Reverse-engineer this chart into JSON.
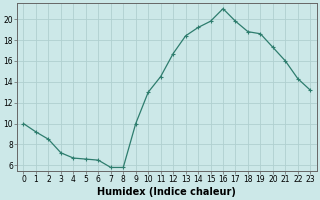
{
  "xlabel": "Humidex (Indice chaleur)",
  "x": [
    0,
    1,
    2,
    3,
    4,
    5,
    6,
    7,
    8,
    9,
    10,
    11,
    12,
    13,
    14,
    15,
    16,
    17,
    18,
    19,
    20,
    21,
    22,
    23
  ],
  "y": [
    10.0,
    9.2,
    8.5,
    7.2,
    6.7,
    6.6,
    6.5,
    5.8,
    5.8,
    10.0,
    13.0,
    14.5,
    16.7,
    18.4,
    19.2,
    19.8,
    21.0,
    19.8,
    18.8,
    18.6,
    17.3,
    16.0,
    14.3,
    13.2
  ],
  "line_color": "#2e7d6e",
  "marker": "+",
  "marker_size": 3,
  "bg_color": "#cce8e8",
  "grid_color": "#b0d0d0",
  "axes_color": "#666666",
  "ylim": [
    5.5,
    21.5
  ],
  "yticks": [
    6,
    8,
    10,
    12,
    14,
    16,
    18,
    20
  ],
  "xticks": [
    0,
    1,
    2,
    3,
    4,
    5,
    6,
    7,
    8,
    9,
    10,
    11,
    12,
    13,
    14,
    15,
    16,
    17,
    18,
    19,
    20,
    21,
    22,
    23
  ],
  "tick_fontsize": 5.5,
  "label_fontsize": 7.0
}
